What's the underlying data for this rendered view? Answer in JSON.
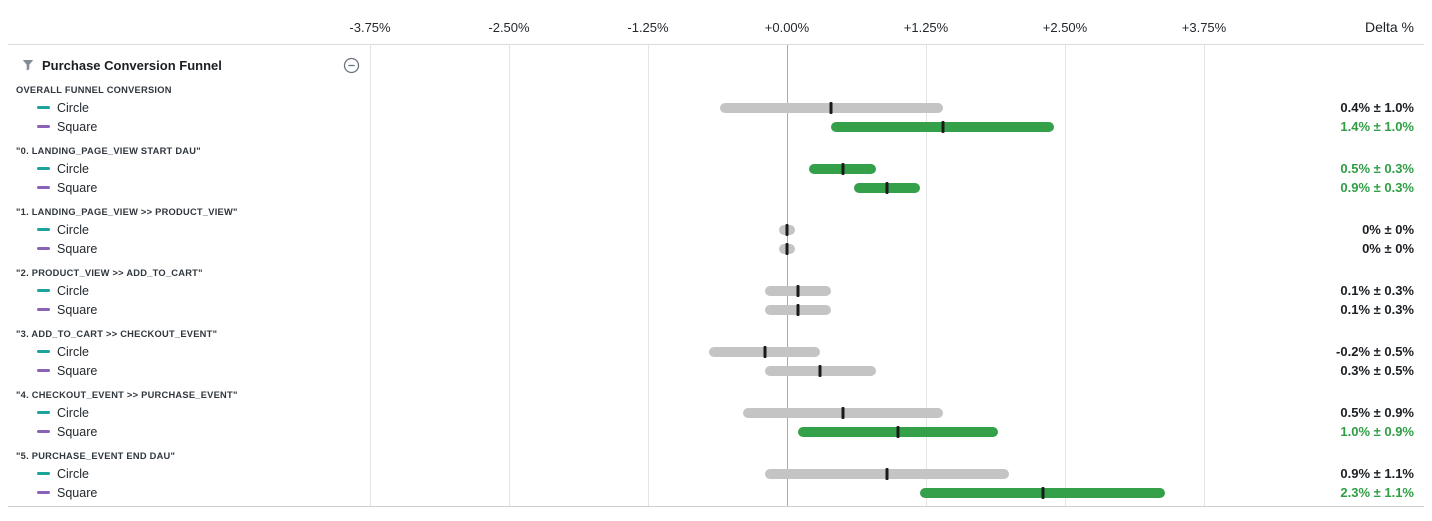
{
  "colors": {
    "positive_text": "#2f9e44",
    "neutral_text": "#1b1f23",
    "positive_bar": "#34a04a",
    "neutral_bar": "#c4c4c4",
    "point_tick": "#1a1a1a",
    "gridline": "#e4e4e4",
    "zero_line": "#a9a9a9",
    "circle_swatch": "#1ba39c",
    "square_swatch": "#8a63b8"
  },
  "axis": {
    "delta_header": "Delta %",
    "ticks": [
      "-3.75%",
      "-2.50%",
      "-1.25%",
      "+0.00%",
      "+1.25%",
      "+2.50%",
      "+3.75%"
    ],
    "tick_values": [
      -3.75,
      -2.5,
      -1.25,
      0,
      1.25,
      2.5,
      3.75
    ],
    "min": -3.75,
    "max": 3.75
  },
  "group": {
    "title": "Purchase Conversion Funnel",
    "filter_icon": "funnel-icon",
    "collapse_icon": "circle-minus-icon"
  },
  "chart_data": {
    "type": "bar",
    "subtype": "confidence-interval-forest-plot",
    "title": "Purchase Conversion Funnel",
    "xlabel": "Delta %",
    "x_range": [
      -3.75,
      3.75
    ],
    "gridlines": true,
    "zero_line": true,
    "variant_legend": [
      {
        "label": "Circle",
        "swatch_icon": "dash",
        "swatch_color": "#1ba39c"
      },
      {
        "label": "Square",
        "swatch_icon": "dash",
        "swatch_color": "#8a63b8"
      }
    ],
    "metrics": [
      {
        "name": "OVERALL FUNNEL CONVERSION",
        "variants": [
          {
            "label": "Circle",
            "swatch_color": "#1ba39c",
            "value": 0.4,
            "margin": 1.0,
            "delta_label": "0.4% ± 1.0%",
            "significant": false
          },
          {
            "label": "Square",
            "swatch_color": "#8a63b8",
            "value": 1.4,
            "margin": 1.0,
            "delta_label": "1.4% ± 1.0%",
            "significant": true
          }
        ]
      },
      {
        "name": "\"0. LANDING_PAGE_VIEW START DAU\"",
        "variants": [
          {
            "label": "Circle",
            "swatch_color": "#1ba39c",
            "value": 0.5,
            "margin": 0.3,
            "delta_label": "0.5% ± 0.3%",
            "significant": true
          },
          {
            "label": "Square",
            "swatch_color": "#8a63b8",
            "value": 0.9,
            "margin": 0.3,
            "delta_label": "0.9% ± 0.3%",
            "significant": true
          }
        ]
      },
      {
        "name": "\"1. LANDING_PAGE_VIEW >> PRODUCT_VIEW\"",
        "variants": [
          {
            "label": "Circle",
            "swatch_color": "#1ba39c",
            "value": 0,
            "margin": 0,
            "delta_label": "0% ± 0%",
            "significant": false
          },
          {
            "label": "Square",
            "swatch_color": "#8a63b8",
            "value": 0,
            "margin": 0,
            "delta_label": "0% ± 0%",
            "significant": false
          }
        ]
      },
      {
        "name": "\"2. PRODUCT_VIEW >> ADD_TO_CART\"",
        "variants": [
          {
            "label": "Circle",
            "swatch_color": "#1ba39c",
            "value": 0.1,
            "margin": 0.3,
            "delta_label": "0.1% ± 0.3%",
            "significant": false
          },
          {
            "label": "Square",
            "swatch_color": "#8a63b8",
            "value": 0.1,
            "margin": 0.3,
            "delta_label": "0.1% ± 0.3%",
            "significant": false
          }
        ]
      },
      {
        "name": "\"3. ADD_TO_CART >> CHECKOUT_EVENT\"",
        "variants": [
          {
            "label": "Circle",
            "swatch_color": "#1ba39c",
            "value": -0.2,
            "margin": 0.5,
            "delta_label": "-0.2% ± 0.5%",
            "significant": false
          },
          {
            "label": "Square",
            "swatch_color": "#8a63b8",
            "value": 0.3,
            "margin": 0.5,
            "delta_label": "0.3% ± 0.5%",
            "significant": false
          }
        ]
      },
      {
        "name": "\"4. CHECKOUT_EVENT >> PURCHASE_EVENT\"",
        "variants": [
          {
            "label": "Circle",
            "swatch_color": "#1ba39c",
            "value": 0.5,
            "margin": 0.9,
            "delta_label": "0.5% ± 0.9%",
            "significant": false
          },
          {
            "label": "Square",
            "swatch_color": "#8a63b8",
            "value": 1.0,
            "margin": 0.9,
            "delta_label": "1.0% ± 0.9%",
            "significant": true
          }
        ]
      },
      {
        "name": "\"5. PURCHASE_EVENT END DAU\"",
        "variants": [
          {
            "label": "Circle",
            "swatch_color": "#1ba39c",
            "value": 0.9,
            "margin": 1.1,
            "delta_label": "0.9% ± 1.1%",
            "significant": false
          },
          {
            "label": "Square",
            "swatch_color": "#8a63b8",
            "value": 2.3,
            "margin": 1.1,
            "delta_label": "2.3% ± 1.1%",
            "significant": true
          }
        ]
      }
    ]
  }
}
